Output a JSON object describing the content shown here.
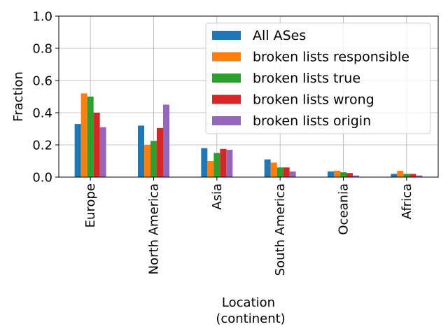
{
  "chart_data": {
    "type": "bar",
    "xlabel_lines": [
      "Location",
      "(continent)"
    ],
    "ylabel": "Fraction",
    "ylim": [
      0,
      1.0
    ],
    "yticks": [
      "0.0",
      "0.2",
      "0.4",
      "0.6",
      "0.8",
      "1.0"
    ],
    "grid": true,
    "legend_position": "top-right",
    "categories": [
      "Europe",
      "North America",
      "Asia",
      "South America",
      "Oceania",
      "Africa"
    ],
    "series": [
      {
        "name": "All ASes",
        "color": "#1f77b4",
        "values": [
          0.33,
          0.32,
          0.18,
          0.11,
          0.035,
          0.02
        ]
      },
      {
        "name": "broken lists responsible",
        "color": "#ff7f0e",
        "values": [
          0.52,
          0.2,
          0.1,
          0.09,
          0.04,
          0.04
        ]
      },
      {
        "name": "broken lists true",
        "color": "#2ca02c",
        "values": [
          0.5,
          0.225,
          0.15,
          0.06,
          0.03,
          0.02
        ]
      },
      {
        "name": "broken lists wrong",
        "color": "#d62728",
        "values": [
          0.4,
          0.305,
          0.175,
          0.06,
          0.025,
          0.02
        ]
      },
      {
        "name": "broken lists origin",
        "color": "#9467bd",
        "values": [
          0.31,
          0.45,
          0.17,
          0.035,
          0.01,
          0.01
        ]
      }
    ]
  }
}
